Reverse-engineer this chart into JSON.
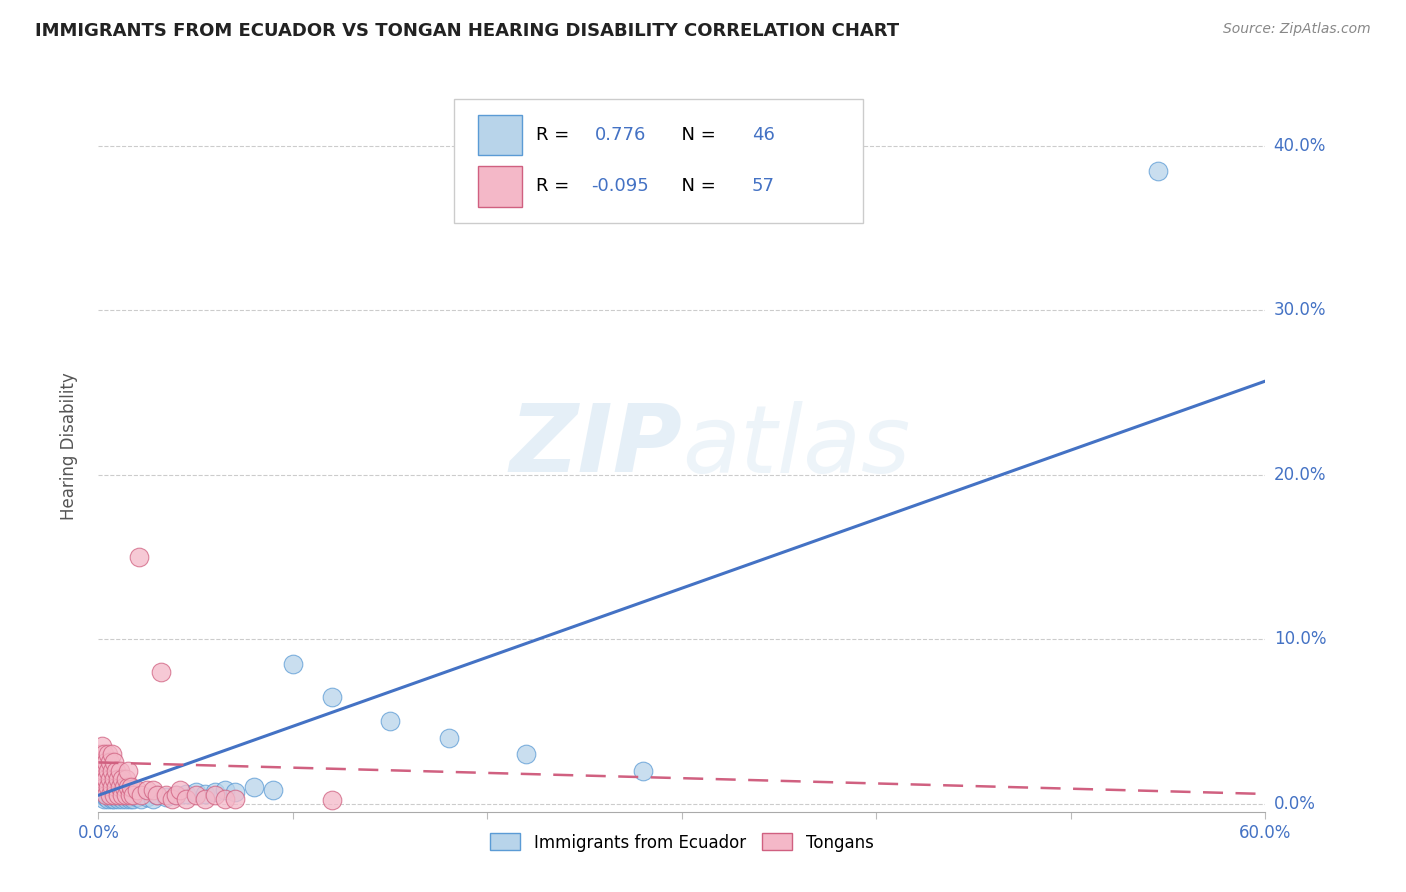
{
  "title": "IMMIGRANTS FROM ECUADOR VS TONGAN HEARING DISABILITY CORRELATION CHART",
  "source": "Source: ZipAtlas.com",
  "ylabel": "Hearing Disability",
  "xlabel_legend1": "Immigrants from Ecuador",
  "xlabel_legend2": "Tongans",
  "xlim": [
    0.0,
    0.6
  ],
  "ylim": [
    -0.005,
    0.44
  ],
  "xticks": [
    0.0,
    0.1,
    0.2,
    0.3,
    0.4,
    0.5,
    0.6
  ],
  "yticks": [
    0.0,
    0.1,
    0.2,
    0.3,
    0.4
  ],
  "r_ecuador": 0.776,
  "n_ecuador": 46,
  "r_tongan": -0.095,
  "n_tongan": 57,
  "color_ecuador_fill": "#b8d4ea",
  "color_ecuador_edge": "#5b9bd5",
  "color_tongan_fill": "#f4b8c8",
  "color_tongan_edge": "#d06080",
  "color_ecuador_line": "#4472c4",
  "color_tongan_line": "#d06080",
  "background": "#ffffff",
  "ecuador_x": [
    0.002,
    0.003,
    0.004,
    0.005,
    0.005,
    0.006,
    0.007,
    0.007,
    0.008,
    0.008,
    0.009,
    0.009,
    0.01,
    0.01,
    0.011,
    0.012,
    0.012,
    0.013,
    0.014,
    0.015,
    0.015,
    0.016,
    0.017,
    0.018,
    0.02,
    0.022,
    0.025,
    0.028,
    0.03,
    0.035,
    0.04,
    0.045,
    0.05,
    0.055,
    0.06,
    0.065,
    0.07,
    0.08,
    0.09,
    0.1,
    0.12,
    0.15,
    0.18,
    0.22,
    0.28,
    0.545
  ],
  "ecuador_y": [
    0.005,
    0.003,
    0.004,
    0.005,
    0.003,
    0.004,
    0.003,
    0.005,
    0.004,
    0.003,
    0.004,
    0.005,
    0.004,
    0.003,
    0.004,
    0.003,
    0.005,
    0.004,
    0.003,
    0.004,
    0.005,
    0.003,
    0.004,
    0.003,
    0.004,
    0.003,
    0.004,
    0.003,
    0.005,
    0.004,
    0.005,
    0.006,
    0.007,
    0.006,
    0.007,
    0.008,
    0.007,
    0.01,
    0.008,
    0.085,
    0.065,
    0.05,
    0.04,
    0.03,
    0.02,
    0.385
  ],
  "tongan_x": [
    0.001,
    0.001,
    0.002,
    0.002,
    0.002,
    0.003,
    0.003,
    0.003,
    0.004,
    0.004,
    0.004,
    0.005,
    0.005,
    0.005,
    0.006,
    0.006,
    0.006,
    0.007,
    0.007,
    0.007,
    0.008,
    0.008,
    0.008,
    0.009,
    0.009,
    0.01,
    0.01,
    0.011,
    0.011,
    0.012,
    0.012,
    0.013,
    0.014,
    0.014,
    0.015,
    0.015,
    0.016,
    0.017,
    0.018,
    0.02,
    0.021,
    0.022,
    0.025,
    0.028,
    0.03,
    0.032,
    0.035,
    0.038,
    0.04,
    0.042,
    0.045,
    0.05,
    0.055,
    0.06,
    0.065,
    0.07,
    0.12
  ],
  "tongan_y": [
    0.02,
    0.03,
    0.015,
    0.025,
    0.035,
    0.01,
    0.02,
    0.03,
    0.015,
    0.025,
    0.005,
    0.02,
    0.03,
    0.01,
    0.015,
    0.025,
    0.005,
    0.01,
    0.02,
    0.03,
    0.015,
    0.025,
    0.005,
    0.01,
    0.02,
    0.015,
    0.005,
    0.01,
    0.02,
    0.005,
    0.015,
    0.01,
    0.005,
    0.015,
    0.01,
    0.02,
    0.005,
    0.01,
    0.005,
    0.008,
    0.15,
    0.005,
    0.008,
    0.008,
    0.005,
    0.08,
    0.005,
    0.003,
    0.005,
    0.008,
    0.003,
    0.005,
    0.003,
    0.005,
    0.003,
    0.003,
    0.002
  ]
}
